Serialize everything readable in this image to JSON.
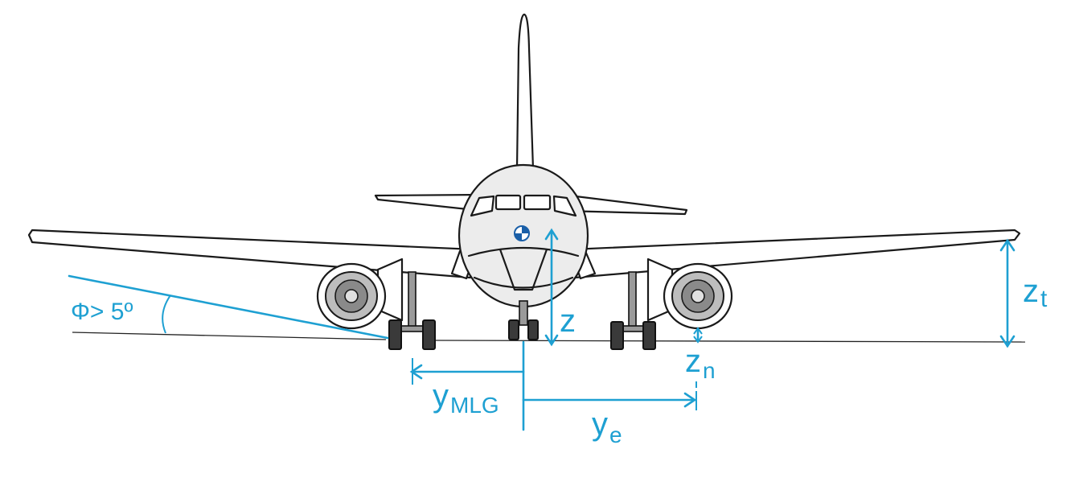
{
  "labels": {
    "bank_angle": "Φ> 5º",
    "z": "z",
    "z_t_main": "z",
    "z_t_sub": "t",
    "z_n_main": "z",
    "z_n_sub": "n",
    "y_mlg_main": "y",
    "y_mlg_sub": "MLG",
    "y_e_main": "y",
    "y_e_sub": "e"
  },
  "colors": {
    "annotation": "#1ea0d2",
    "line_art": "#1a1a1a",
    "fuselage_fill": "#ececec",
    "tire": "#3a3a3a"
  },
  "icons": {
    "cg_marker": "center-of-gravity-symbol"
  }
}
